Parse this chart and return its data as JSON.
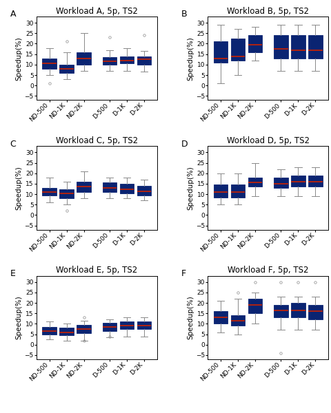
{
  "titles": [
    "Workload A, 5p, TS2",
    "Workload B, 5p, TS2",
    "Workload C, 5p, TS2",
    "Workload D, 5p, TS2",
    "Workload E, 5p, TS2",
    "Workload F, 5p, TS2"
  ],
  "panel_labels": [
    "A",
    "B",
    "C",
    "D",
    "E",
    "F"
  ],
  "categories": [
    "ND-500",
    "ND-1K",
    "ND-2K",
    "D-500",
    "D-1K",
    "D-2K"
  ],
  "ylabel": "Speedup(%)",
  "ylim": [
    -7,
    33
  ],
  "yticks": [
    -5,
    0,
    5,
    10,
    15,
    20,
    25,
    30
  ],
  "box_color": "#0a2472",
  "median_color": "#cc2200",
  "whisker_color": "#888888",
  "flier_color": "#888888",
  "box_data": {
    "A": {
      "ND-500": {
        "q1": 8.0,
        "median": 10.5,
        "q3": 13.0,
        "whislo": 5.0,
        "whishi": 18.0,
        "fliers": [
          1.0
        ]
      },
      "ND-1K": {
        "q1": 6.0,
        "median": 8.0,
        "q3": 10.0,
        "whislo": 3.0,
        "whishi": 16.0,
        "fliers": [
          21.0
        ]
      },
      "ND-2K": {
        "q1": 10.0,
        "median": 13.0,
        "q3": 16.0,
        "whislo": 7.0,
        "whishi": 25.0,
        "fliers": []
      },
      "D-500": {
        "q1": 10.0,
        "median": 11.5,
        "q3": 13.5,
        "whislo": 7.0,
        "whishi": 17.0,
        "fliers": [
          23.0
        ]
      },
      "D-1K": {
        "q1": 10.5,
        "median": 12.0,
        "q3": 14.0,
        "whislo": 7.0,
        "whishi": 18.0,
        "fliers": []
      },
      "D-2K": {
        "q1": 10.0,
        "median": 12.5,
        "q3": 14.0,
        "whislo": 6.5,
        "whishi": 16.5,
        "fliers": [
          24.0
        ]
      }
    },
    "B": {
      "ND-500": {
        "q1": 11.0,
        "median": 13.0,
        "q3": 21.0,
        "whislo": 1.0,
        "whishi": 29.0,
        "fliers": []
      },
      "ND-1K": {
        "q1": 12.0,
        "median": 14.0,
        "q3": 22.5,
        "whislo": 5.0,
        "whishi": 27.0,
        "fliers": []
      },
      "ND-2K": {
        "q1": 16.0,
        "median": 19.5,
        "q3": 24.0,
        "whislo": 12.0,
        "whishi": 28.0,
        "fliers": []
      },
      "D-500": {
        "q1": 13.0,
        "median": 17.5,
        "q3": 24.0,
        "whislo": 7.0,
        "whishi": 29.0,
        "fliers": []
      },
      "D-1K": {
        "q1": 13.0,
        "median": 17.0,
        "q3": 24.0,
        "whislo": 7.0,
        "whishi": 29.0,
        "fliers": []
      },
      "D-2K": {
        "q1": 13.0,
        "median": 17.0,
        "q3": 24.0,
        "whislo": 7.0,
        "whishi": 29.0,
        "fliers": []
      }
    },
    "C": {
      "ND-500": {
        "q1": 9.5,
        "median": 11.0,
        "q3": 13.0,
        "whislo": 6.0,
        "whishi": 18.0,
        "fliers": []
      },
      "ND-1K": {
        "q1": 8.0,
        "median": 10.5,
        "q3": 12.5,
        "whislo": 5.0,
        "whishi": 16.0,
        "fliers": [
          2.0
        ]
      },
      "ND-2K": {
        "q1": 11.0,
        "median": 13.5,
        "q3": 16.0,
        "whislo": 8.0,
        "whishi": 21.0,
        "fliers": []
      },
      "D-500": {
        "q1": 11.0,
        "median": 13.0,
        "q3": 15.5,
        "whislo": 8.0,
        "whishi": 18.0,
        "fliers": []
      },
      "D-1K": {
        "q1": 10.5,
        "median": 12.5,
        "q3": 15.0,
        "whislo": 8.0,
        "whishi": 18.0,
        "fliers": []
      },
      "D-2K": {
        "q1": 9.5,
        "median": 11.5,
        "q3": 14.0,
        "whislo": 7.0,
        "whishi": 17.0,
        "fliers": []
      }
    },
    "D": {
      "ND-500": {
        "q1": 8.5,
        "median": 11.0,
        "q3": 14.5,
        "whislo": 5.0,
        "whishi": 20.0,
        "fliers": []
      },
      "ND-1K": {
        "q1": 8.5,
        "median": 11.0,
        "q3": 14.5,
        "whislo": 5.0,
        "whishi": 20.0,
        "fliers": []
      },
      "ND-2K": {
        "q1": 13.5,
        "median": 15.5,
        "q3": 18.0,
        "whislo": 9.0,
        "whishi": 25.0,
        "fliers": []
      },
      "D-500": {
        "q1": 13.0,
        "median": 15.0,
        "q3": 18.0,
        "whislo": 9.0,
        "whishi": 22.0,
        "fliers": []
      },
      "D-1K": {
        "q1": 13.5,
        "median": 16.0,
        "q3": 19.0,
        "whislo": 9.0,
        "whishi": 23.0,
        "fliers": []
      },
      "D-2K": {
        "q1": 13.5,
        "median": 16.0,
        "q3": 19.0,
        "whislo": 9.0,
        "whishi": 23.0,
        "fliers": []
      }
    },
    "E": {
      "ND-500": {
        "q1": 5.0,
        "median": 6.5,
        "q3": 8.5,
        "whislo": 2.5,
        "whishi": 11.0,
        "fliers": []
      },
      "ND-1K": {
        "q1": 4.5,
        "median": 6.0,
        "q3": 8.0,
        "whislo": 2.0,
        "whishi": 10.0,
        "fliers": []
      },
      "ND-2K": {
        "q1": 5.5,
        "median": 7.5,
        "q3": 9.5,
        "whislo": 2.0,
        "whishi": 11.5,
        "fliers": [
          13.0,
          2.0
        ]
      },
      "D-500": {
        "q1": 6.5,
        "median": 8.5,
        "q3": 10.5,
        "whislo": 3.5,
        "whishi": 12.0,
        "fliers": [
          4.0
        ]
      },
      "D-1K": {
        "q1": 7.5,
        "median": 9.0,
        "q3": 11.0,
        "whislo": 4.0,
        "whishi": 13.0,
        "fliers": []
      },
      "D-2K": {
        "q1": 7.5,
        "median": 9.0,
        "q3": 11.0,
        "whislo": 4.0,
        "whishi": 13.0,
        "fliers": []
      }
    },
    "F": {
      "ND-500": {
        "q1": 10.0,
        "median": 13.0,
        "q3": 16.0,
        "whislo": 6.0,
        "whishi": 21.0,
        "fliers": []
      },
      "ND-1K": {
        "q1": 9.0,
        "median": 11.5,
        "q3": 14.0,
        "whislo": 5.0,
        "whishi": 22.0,
        "fliers": [
          25.0
        ]
      },
      "ND-2K": {
        "q1": 15.0,
        "median": 19.0,
        "q3": 22.0,
        "whislo": 10.0,
        "whishi": 25.0,
        "fliers": [
          30.0
        ]
      },
      "D-500": {
        "q1": 13.0,
        "median": 16.5,
        "q3": 19.0,
        "whislo": 7.0,
        "whishi": 23.0,
        "fliers": [
          30.0,
          -4.0
        ]
      },
      "D-1K": {
        "q1": 13.0,
        "median": 16.5,
        "q3": 20.0,
        "whislo": 7.0,
        "whishi": 23.0,
        "fliers": [
          30.0
        ]
      },
      "D-2K": {
        "q1": 12.0,
        "median": 16.0,
        "q3": 19.0,
        "whislo": 7.0,
        "whishi": 23.0,
        "fliers": [
          30.0
        ]
      }
    }
  },
  "title_fontsize": 8.5,
  "label_fontsize": 7.5,
  "tick_fontsize": 6.5,
  "panel_label_fontsize": 9
}
